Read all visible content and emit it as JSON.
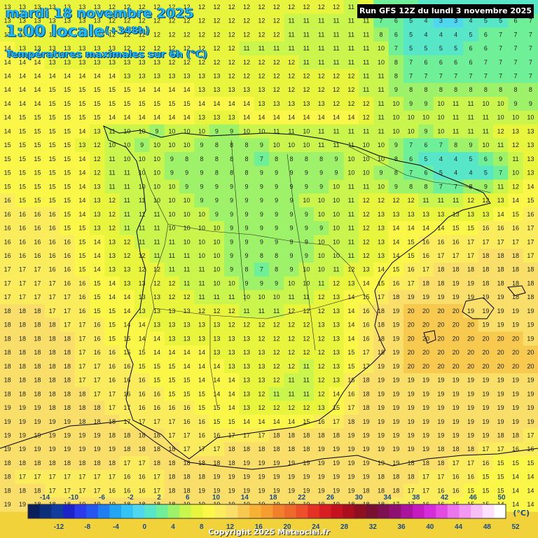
{
  "header": {
    "date_line": "mardi 18 novembre 2025",
    "time_line": "1:00 locale",
    "lead_time": "(+348h)",
    "field_title": "Températures maximales sur 6h (°C)"
  },
  "run_label": "Run GFS 12Z du lundi 3 novembre 2025",
  "copyright": "Copyright 2025 Meteociel.fr",
  "legend": {
    "unit": "(°C)",
    "top_ticks": [
      "-14",
      "-10",
      "-6",
      "-2",
      "2",
      "6",
      "10",
      "14",
      "18",
      "22",
      "26",
      "30",
      "34",
      "38",
      "42",
      "46",
      "50"
    ],
    "bottom_ticks": [
      "-12",
      "-8",
      "-4",
      "0",
      "4",
      "8",
      "12",
      "16",
      "20",
      "24",
      "28",
      "32",
      "36",
      "40",
      "44",
      "48",
      "52"
    ],
    "colors": [
      "#0a1e5c",
      "#0d2f7a",
      "#123c9e",
      "#1e23c8",
      "#2c3bea",
      "#2556f0",
      "#1f7ff0",
      "#23a6f2",
      "#33c3f5",
      "#4fd7f0",
      "#58e6c9",
      "#6fef98",
      "#9ef26a",
      "#c9f54c",
      "#e9f53c",
      "#fbf748",
      "#fbec5e",
      "#f9de6a",
      "#f7c94e",
      "#f6b235",
      "#f59d2e",
      "#f0802a",
      "#ee6a2a",
      "#ec4f2a",
      "#e33224",
      "#d71e22",
      "#c4131e",
      "#ab0f1d",
      "#8e0f1f",
      "#7a1030",
      "#7c1050",
      "#8e1070",
      "#a8149a",
      "#c41bbf",
      "#d42cd8",
      "#e24ae2",
      "#ec74ec",
      "#f398f0",
      "#f8bff6",
      "#fde0fb",
      "#ffffff"
    ]
  },
  "grid": {
    "rows": [
      "13 13 13 13 13 13 13 12 12 12 12 12 12 12 12 12 12 12 12 12 12 12 12 11 12 6 6 6 5 5 5 4 4 4 4 5",
      "13 13 13 13 13 13 13 12 12 12 12 12 12 12 12 12 12 12 12 11 11 11 11 11 11 7 6 5 4 3 3 4 5 5 6 7",
      "13 13 13 13 13 13 12 12 12 12 12 12 12 12 12 12 12 12 12 11 11 11 11 11 11 8 6 5 4 4 4 5 6 7 7 7",
      "14 13 13 13 13 13 13 13 12 12 12 12 12 12 12 12 11 11 11 11 11 11 11 11 11 10 7 5 5 5 5 6 6 7 7 7",
      "14 14 14 13 13 13 13 13 13 13 13 12 12 12 12 12 12 12 12 12 11 11 11 11 11 10 8 7 6 6 6 6 7 7 7 7",
      "14 14 14 14 14 14 14 14 13 13 13 13 13 13 13 12 12 12 12 12 12 12 12 12 11 11 8 7 7 7 7 7 7 7 7 7",
      "14 14 14 15 15 15 15 15 15 14 14 14 14 13 13 13 13 13 12 12 12 12 12 12 11 11 9 8 8 8 8 8 8 8 8 8",
      "14 14 14 15 15 15 15 15 15 15 15 15 15 14 14 14 14 13 13 13 13 13 12 12 12 11 10 9 9 10 11 11 10 10 9 9",
      "14 15 15 15 15 15 15 14 14 14 14 14 14 13 13 13 14 14 14 14 14 14 14 14 12 11 10 10 10 10 11 11 11 10 10 10",
      "14 15 15 15 15 14 13 11 10 10 9 10 10 10 9 9 10 10 11 11 10 11 11 11 11 11 10 10 9 10 11 11 11 12 13 13",
      "15 15 15 15 15 13 12 10 10 9 10 10 10 9 8 8 8 9 10 10 10 11 11 11 10 10 9 7 6 7 8 9 10 11 12 13",
      "15 15 15 15 15 14 12 11 10 10 10 9 8 8 8 8 8 7 8 8 8 8 9 10 10 10 8 6 5 4 4 5 6 9 11 13",
      "15 15 15 15 15 14 12 11 11 10 10 9 9 9 8 8 8 9 9 9 9 9 9 10 10 9 8 7 6 5 4 4 5 7 10 13",
      "15 15 15 15 15 14 13 11 11 10 10 10 9 9 9 9 9 9 9 9 9 9 10 11 11 10 9 8 8 7 7 8 9 11 12 14",
      "16 15 15 15 15 14 13 12 11 11 10 10 10 9 9 9 9 9 9 9 10 10 10 11 12 12 12 12 11 11 11 12 12 13 14 15",
      "16 16 16 16 15 14 13 12 11 11 11 10 10 10 9 9 9 9 9 9 9 10 10 11 12 13 13 13 13 13 13 13 13 14 15 16",
      "16 16 16 16 15 15 13 12 11 11 11 10 10 10 10 9 9 9 9 9 9 9 10 11 12 13 14 14 14 14 15 15 16 16 16 17",
      "16 16 16 16 16 15 14 13 12 11 11 11 10 10 10 9 9 9 9 9 9 10 10 11 12 13 14 15 16 16 16 17 17 17 17 17",
      "16 16 16 16 16 15 14 13 12 12 11 11 11 10 10 9 9 8 8 9 9 10 10 11 12 13 14 15 16 17 17 17 18 18 18 17",
      "17 17 17 16 16 15 14 13 13 12 12 11 11 11 10 9 8 7 8 9 10 10 11 12 13 14 15 16 17 18 18 18 18 18 18 18",
      "17 17 17 17 16 16 15 14 13 13 12 12 11 11 10 10 9 9 9 10 10 11 12 13 14 15 16 17 18 18 19 19 18 18 18 18",
      "17 17 17 17 17 16 15 14 14 13 13 12 12 11 11 11 10 10 10 11 11 12 13 14 15 17 18 19 19 19 19 19 19 19 18 18",
      "18 18 18 17 17 16 15 15 14 13 13 13 13 12 12 12 11 11 11 12 12 12 13 14 16 18 19 20 20 20 20 19 19 19 19 19",
      "18 18 18 18 17 17 16 15 14 14 13 13 13 13 13 12 12 12 12 12 12 13 13 14 16 18 19 20 20 20 20 20 19 19 19 19",
      "18 18 18 18 18 17 16 15 15 14 14 13 13 13 13 13 13 12 12 12 12 12 13 14 16 18 19 20 20 20 20 20 20 20 20 19",
      "18 18 18 18 18 17 16 16 15 15 14 14 14 14 13 13 13 13 12 12 12 12 13 15 17 18 19 20 20 20 20 20 20 20 20 20",
      "18 18 18 18 18 17 17 16 16 15 15 15 14 14 14 13 13 13 12 12 11 12 13 15 17 19 19 20 20 20 20 20 20 20 20 20",
      "18 18 18 18 18 17 17 16 16 16 15 15 15 14 14 14 13 13 12 11 11 12 13 16 18 19 19 19 19 19 19 19 19 19 19 19",
      "18 18 18 18 18 18 17 17 16 16 16 15 15 15 14 14 13 12 11 11 11 12 14 16 18 19 19 19 19 19 19 19 19 19 19 19",
      "19 19 19 18 18 18 18 17 17 16 16 16 16 15 15 14 13 12 12 12 12 13 15 17 18 19 19 19 19 19 19 19 19 19 19 19",
      "19 19 19 19 19 18 18 18 17 17 17 17 16 16 15 15 14 14 14 14 15 16 17 18 19 19 19 19 19 19 19 19 19 19 19 19",
      "19 19 19 19 19 19 19 18 18 18 18 17 17 16 16 17 17 17 18 18 18 18 18 19 19 19 19 19 19 19 19 19 19 18 18 17",
      "19 19 19 19 19 19 19 19 18 18 18 18 17 17 17 18 18 18 18 18 18 19 19 19 19 19 19 19 19 18 18 18 17 17 16 16",
      "18 18 18 18 18 18 18 18 17 17 18 18 18 18 18 18 19 19 19 19 19 19 19 19 19 19 19 18 18 18 17 17 16 15 15 15",
      "18 17 17 17 17 17 17 17 16 16 17 18 18 18 19 19 19 19 19 19 19 19 19 19 19 18 18 18 17 17 16 16 15 15 14 14",
      "18 18 18 17 17 17 17 16 16 16 17 18 18 19 19 19 19 19 19 19 19 19 19 19 18 18 18 17 17 16 16 15 15 15 14 14",
      "19 19 18 18 18 19 19 19 18 18 18 18 19 19 19 19 19 19 19 19 19 19 19 18 18 18 17 17 16 16 15 15 15 14 14 14"
    ]
  }
}
